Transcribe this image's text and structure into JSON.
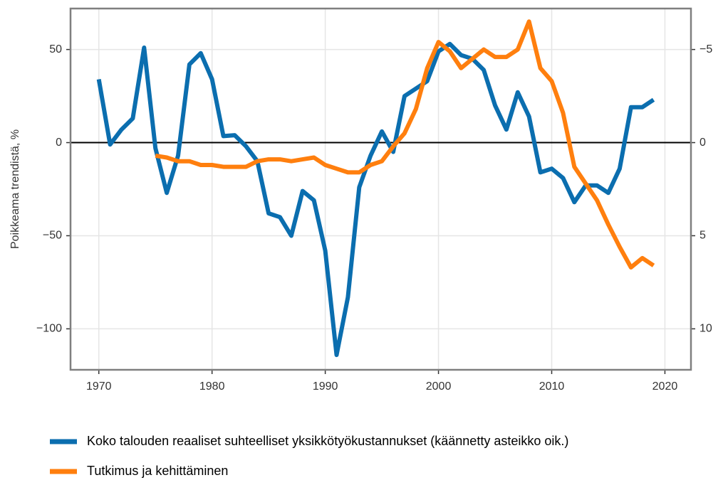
{
  "chart_data": {
    "type": "line",
    "y_label": "Poikkeama trendistä, %",
    "x": [
      1970,
      1971,
      1972,
      1973,
      1974,
      1975,
      1976,
      1977,
      1978,
      1979,
      1980,
      1981,
      1982,
      1983,
      1984,
      1985,
      1986,
      1987,
      1988,
      1989,
      1990,
      1991,
      1992,
      1993,
      1994,
      1995,
      1996,
      1997,
      1998,
      1999,
      2000,
      2001,
      2002,
      2003,
      2004,
      2005,
      2006,
      2007,
      2008,
      2009,
      2010,
      2011,
      2012,
      2013,
      2014,
      2015,
      2016,
      2017,
      2018,
      2019
    ],
    "series": [
      {
        "name": "Koko talouden reaaliset suhteelliset yksikkötyökustannukset (käännetty asteikko oik.)",
        "color": "#0b6eaf",
        "axis": "y2",
        "values": [
          -3.4,
          0.1,
          -0.7,
          -1.3,
          -5.1,
          0.3,
          2.7,
          0.7,
          -4.2,
          -4.8,
          -3.4,
          -0.35,
          -0.4,
          0.2,
          1.0,
          3.8,
          4.0,
          5.0,
          2.6,
          3.1,
          5.8,
          11.4,
          8.3,
          2.4,
          0.7,
          -0.6,
          0.5,
          -2.5,
          -2.9,
          -3.3,
          -4.9,
          -5.3,
          -4.7,
          -4.5,
          -3.9,
          -2.0,
          -0.7,
          -2.7,
          -1.4,
          1.6,
          1.4,
          1.9,
          3.2,
          2.3,
          2.3,
          2.7,
          1.4,
          -1.9,
          -1.9,
          -2.3
        ]
      },
      {
        "name": "Tutkimus ja kehittäminen",
        "color": "#ff7f0e",
        "values": [
          null,
          null,
          null,
          null,
          null,
          -7,
          -8,
          -10,
          -10,
          -12,
          -12,
          -13,
          -13,
          -13,
          -10,
          -9,
          -9,
          -10,
          -9,
          -8,
          -12,
          -14,
          -16,
          -16,
          -12,
          -10,
          -2,
          5,
          18,
          40,
          54,
          49,
          40,
          45,
          50,
          46,
          46,
          50,
          65,
          40,
          33,
          16,
          -13,
          -22,
          -31,
          -44,
          -56,
          -67,
          -62,
          -66
        ]
      }
    ],
    "xlim": [
      1967.5,
      2022.3
    ],
    "xticks": [
      1970,
      1980,
      1990,
      2000,
      2010,
      2020
    ],
    "ylim": [
      -122,
      72
    ],
    "yticks": [
      {
        "value": -100,
        "label": "−100"
      },
      {
        "value": -50,
        "label": "−50"
      },
      0,
      50
    ],
    "y2lim": [
      12.2,
      -7.2
    ],
    "y2ticks": [
      {
        "value": -5,
        "label": "−5"
      },
      0,
      5,
      10
    ],
    "grid": true,
    "legend": "bottom"
  }
}
